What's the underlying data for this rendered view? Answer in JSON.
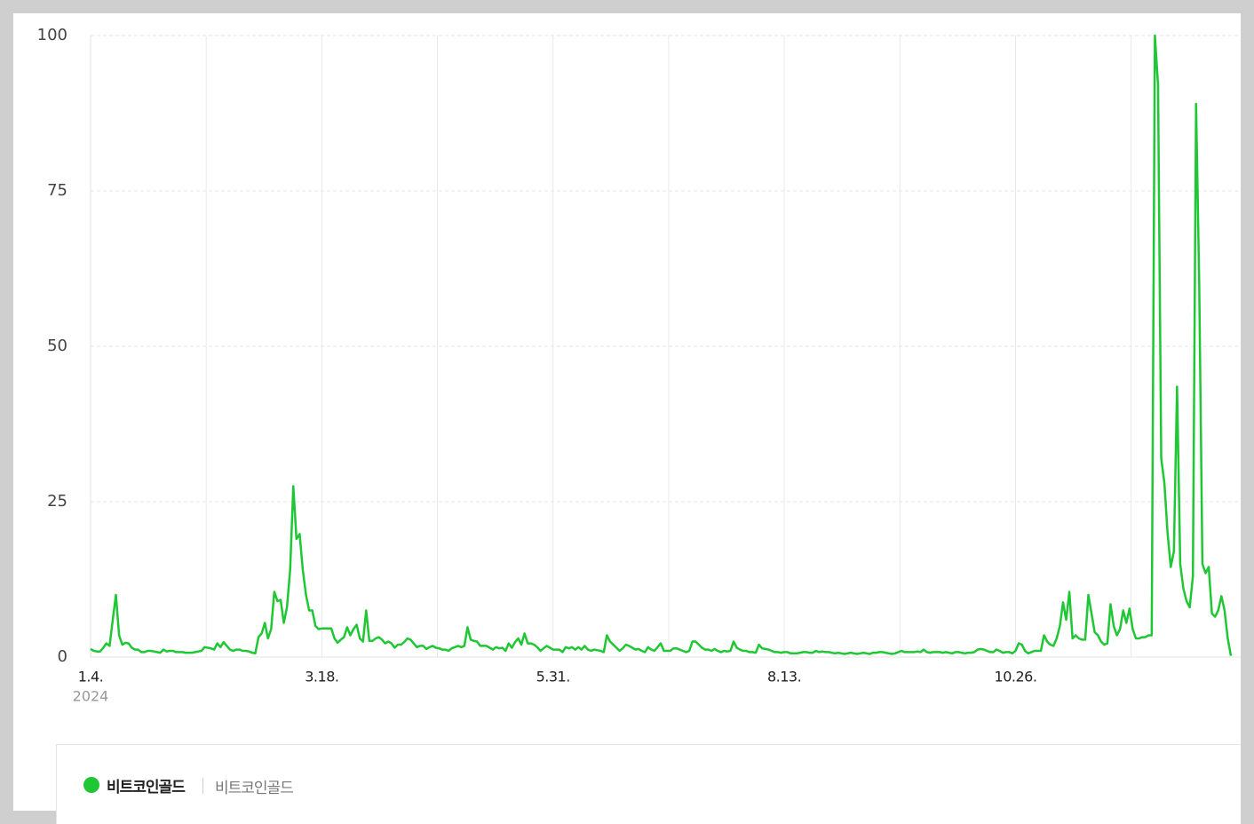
{
  "chart_data": {
    "type": "line",
    "x_year_label": "2024",
    "categories": [
      "1.4.",
      null,
      null,
      null,
      null,
      null,
      null,
      null,
      null,
      null,
      null,
      null,
      null,
      null,
      null,
      null,
      null,
      null,
      null,
      null,
      null,
      null,
      null,
      null,
      null,
      null,
      null,
      null,
      null,
      null,
      null,
      null,
      null,
      null,
      null,
      null,
      null,
      null,
      null,
      null,
      null,
      null,
      null,
      null,
      null,
      null,
      null,
      null,
      null,
      null,
      null,
      null,
      null,
      null,
      null,
      null,
      null,
      null,
      null,
      null,
      null,
      null,
      null,
      null,
      null,
      null,
      null,
      null,
      null,
      null,
      null,
      null,
      null,
      "3.18.",
      null,
      null,
      null,
      null,
      null,
      null,
      null,
      null,
      null,
      null,
      null,
      null,
      null,
      null,
      null,
      null,
      null,
      null,
      null,
      null,
      null,
      null,
      null,
      null,
      null,
      null,
      null,
      null,
      null,
      null,
      null,
      null,
      null,
      null,
      null,
      null,
      null,
      null,
      null,
      null,
      null,
      null,
      null,
      null,
      null,
      null,
      null,
      null,
      null,
      null,
      null,
      null,
      null,
      null,
      null,
      null,
      null,
      null,
      null,
      null,
      null,
      null,
      null,
      null,
      null,
      null,
      null,
      null,
      null,
      null,
      null,
      null,
      "5.31.",
      null,
      null,
      null,
      null,
      null,
      null,
      null,
      null,
      null,
      null,
      null,
      null,
      null,
      null,
      null,
      null,
      null,
      null,
      null,
      null,
      null,
      null,
      null,
      null,
      null,
      null,
      null,
      null,
      null,
      null,
      null,
      null,
      null,
      null,
      null,
      null,
      null,
      null,
      null,
      null,
      null,
      null,
      null,
      null,
      null,
      null,
      null,
      null,
      null,
      null,
      null,
      null,
      null,
      null,
      null,
      null,
      null,
      null,
      null,
      null,
      null,
      null,
      null,
      null,
      null,
      null,
      null,
      null,
      null,
      null,
      null,
      null,
      "8.13.",
      null,
      null,
      null,
      null,
      null,
      null,
      null,
      null,
      null,
      null,
      null,
      null,
      null,
      null,
      null,
      null,
      null,
      null,
      null,
      null,
      null,
      null,
      null,
      null,
      null,
      null,
      null,
      null,
      null,
      null,
      null,
      null,
      null,
      null,
      null,
      null,
      null,
      null,
      null,
      null,
      null,
      null,
      null,
      null,
      null,
      null,
      null,
      null,
      null,
      null,
      null,
      null,
      null,
      null,
      null,
      null,
      null,
      null,
      null,
      null,
      null,
      null,
      null,
      null,
      null,
      null,
      null,
      null,
      null,
      null,
      null,
      null,
      "10.26.",
      null,
      null,
      null,
      null,
      null,
      null,
      null,
      null,
      null,
      null,
      null,
      null,
      null,
      null,
      null,
      null,
      null,
      null,
      null,
      null,
      null,
      null,
      null,
      null,
      null,
      null,
      null,
      null,
      null,
      null,
      null,
      null,
      null,
      null,
      null,
      null,
      null,
      null,
      null,
      null,
      null,
      null,
      null,
      null,
      null,
      null,
      null,
      null,
      null,
      null,
      null,
      null,
      null,
      null,
      null,
      null,
      null,
      null,
      null,
      null,
      null,
      null,
      null,
      null,
      null,
      null,
      null,
      null
    ],
    "series": [
      {
        "name": "비트코인골드",
        "keyword": "비트코인골드",
        "color": "#1ec733",
        "values": [
          1.3,
          1,
          0.9,
          0.9,
          1.5,
          2.2,
          1.8,
          6,
          10,
          3.5,
          2,
          2.3,
          2.2,
          1.5,
          1.2,
          1.2,
          0.8,
          0.8,
          1,
          1,
          0.9,
          0.8,
          0.7,
          1.2,
          0.9,
          1,
          1,
          0.8,
          0.8,
          0.8,
          0.7,
          0.7,
          0.7,
          0.8,
          0.9,
          1,
          1.6,
          1.5,
          1.4,
          1.2,
          2.2,
          1.6,
          2.4,
          1.8,
          1.2,
          1,
          1.2,
          1.2,
          1,
          1,
          0.9,
          0.7,
          0.6,
          3.2,
          3.8,
          5.5,
          3,
          4.5,
          10.5,
          9,
          9.2,
          5.5,
          8,
          14,
          27.5,
          19,
          19.8,
          14,
          10,
          7.5,
          7.5,
          5,
          4.5,
          4.6,
          4.6,
          4.6,
          4.6,
          3,
          2.3,
          2.8,
          3.2,
          4.8,
          3.5,
          4.5,
          5.2,
          3,
          2.5,
          7.5,
          2.6,
          2.6,
          3,
          3.2,
          2.8,
          2.2,
          2.5,
          2.2,
          1.5,
          2,
          2,
          2.4,
          3,
          2.8,
          2.2,
          1.6,
          1.8,
          1.8,
          1.3,
          1.6,
          1.8,
          1.5,
          1.4,
          1.2,
          1.2,
          1,
          1.4,
          1.6,
          1.8,
          1.6,
          1.8,
          4.8,
          2.8,
          2.6,
          2.5,
          1.8,
          1.8,
          1.8,
          1.5,
          1.2,
          1.6,
          1.4,
          1.5,
          1,
          2.2,
          1.5,
          2.4,
          3,
          2,
          3.8,
          2.2,
          2.2,
          2,
          1.6,
          1,
          1.4,
          1.8,
          1.5,
          1.2,
          1.2,
          1.2,
          0.8,
          1.6,
          1.4,
          1.6,
          1.2,
          1.6,
          1.2,
          1.8,
          1.2,
          1,
          1.2,
          1.1,
          1,
          0.8,
          3.5,
          2.5,
          2,
          1.5,
          1,
          1.4,
          2,
          1.8,
          1.5,
          1.2,
          1.3,
          1,
          0.8,
          1.6,
          1.2,
          1,
          1.6,
          2.2,
          1,
          1,
          1,
          1.4,
          1.4,
          1.2,
          1,
          0.8,
          1,
          2.5,
          2.5,
          2,
          1.5,
          1.2,
          1.2,
          1,
          1.3,
          1,
          0.8,
          1,
          0.9,
          1,
          2.5,
          1.5,
          1.2,
          1,
          1,
          0.8,
          0.8,
          0.7,
          2,
          1.4,
          1.3,
          1.2,
          1,
          0.8,
          0.8,
          0.7,
          0.8,
          0.8,
          0.6,
          0.6,
          0.6,
          0.7,
          0.8,
          0.8,
          0.7,
          0.7,
          1,
          0.8,
          0.9,
          0.8,
          0.8,
          0.7,
          0.6,
          0.7,
          0.6,
          0.5,
          0.6,
          0.7,
          0.6,
          0.5,
          0.6,
          0.7,
          0.6,
          0.5,
          0.7,
          0.7,
          0.8,
          0.8,
          0.7,
          0.6,
          0.5,
          0.6,
          0.8,
          1,
          0.8,
          0.8,
          0.8,
          0.8,
          0.9,
          0.8,
          1.2,
          0.8,
          0.7,
          0.8,
          0.8,
          0.8,
          0.7,
          0.8,
          0.7,
          0.6,
          0.8,
          0.8,
          0.7,
          0.6,
          0.7,
          0.7,
          0.8,
          1.2,
          1.3,
          1.2,
          1,
          0.8,
          0.8,
          1.2,
          1,
          0.7,
          0.8,
          0.8,
          0.6,
          1,
          2.2,
          2,
          1,
          0.6,
          0.8,
          1,
          1,
          1,
          3.5,
          2.5,
          2,
          1.8,
          3,
          5,
          8.8,
          6,
          10.5,
          3,
          3.5,
          3,
          2.8,
          2.8,
          10,
          7,
          4,
          3.5,
          2.5,
          2,
          2.2,
          8.5,
          5,
          3.5,
          4.5,
          7.5,
          5.5,
          7.8,
          4.5,
          3,
          3,
          3.2,
          3.2,
          3.5,
          3.5,
          100,
          92,
          32,
          28,
          20,
          14.5,
          17,
          43.5,
          15,
          11,
          9,
          8,
          13,
          89,
          60,
          15,
          13.5,
          14.5,
          7,
          6.5,
          7.5,
          9.8,
          7.5,
          3,
          0.2
        ]
      }
    ],
    "ylim": [
      0,
      100
    ],
    "yticks": [
      0,
      25,
      50,
      75,
      100
    ],
    "grid": true
  }
}
